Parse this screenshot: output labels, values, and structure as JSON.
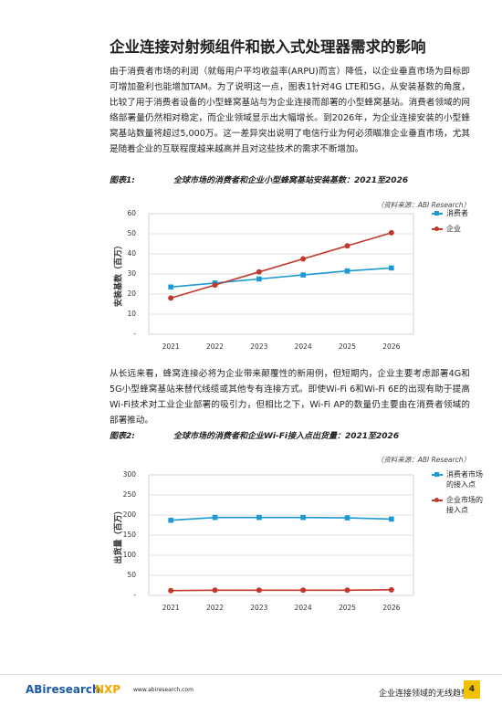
{
  "title": "企业连接对射频组件和嵌入式处理器需求的影响",
  "paragraphs": [
    "由于消费者市场的利润（就每用户平均收益率(ARPU)而言）降低，以企业垂直市场为目标即可增加盈利也能增加TAM。为了说明这一点，图表1针对4G LTE和5G，从安装基数的角度，比较了用于消费者设备的小型蜂窝基站与为企业连接而部署的小型蜂窝基站。消费者领域的网络部署量仍然相对稳定，而企业领域显示出大幅增长。到2026年，为企业连接安装的小型蜂窝基站数量将超过5,000万。这一差异突出说明了电信行业为何必须瞄准企业垂直市场，尤其是随着企业的互联程度越来越高并且对这些技术的需求不断增加。",
    "从长远来看，蜂窝连接必将为企业带来颠覆性的新用例，但短期内，企业主要考虑部署4G和5G小型蜂窝基站来替代线缆或其他专有连接方式。即使Wi-Fi 6和Wi-Fi 6E的出现有助于提高Wi-Fi技术对工业企业部署的吸引力，但相比之下，Wi-Fi AP的数量仍主要由在消费者领域的部署推动。"
  ],
  "figures": [
    {
      "label": "图表1:",
      "caption": "全球市场的消费者和企业小型蜂窝基站安装基数：2021至2026",
      "source": "（资料来源：ABI Research）"
    },
    {
      "label": "图表2:",
      "caption": "全球市场的消费者和企业Wi-Fi接入点出货量：2021至2026",
      "source": "（资料来源：ABI Research）"
    }
  ],
  "chart_data": [
    {
      "type": "line",
      "ylabel": "安装基数（百万）",
      "categories": [
        "2021",
        "2022",
        "2023",
        "2024",
        "2025",
        "2026"
      ],
      "series": [
        {
          "name": "消费者",
          "color": "#1b9ad6",
          "marker": "square",
          "values": [
            23.5,
            25.5,
            27.5,
            29.5,
            31.5,
            33
          ]
        },
        {
          "name": "企业",
          "color": "#c0392b",
          "marker": "circle",
          "values": [
            18,
            24.5,
            31,
            37.5,
            44,
            50.5
          ]
        }
      ],
      "ylim": [
        0,
        60
      ],
      "yticks": [
        {
          "value": 0,
          "label": "-"
        },
        10,
        20,
        30,
        40,
        50,
        60
      ],
      "grid": true,
      "legend": "right"
    },
    {
      "type": "line",
      "ylabel": "出货量（百万）",
      "categories": [
        "2021",
        "2022",
        "2023",
        "2024",
        "2025",
        "2026"
      ],
      "series": [
        {
          "name": "消费者市场的接入点",
          "color": "#1b9ad6",
          "marker": "square",
          "values": [
            187,
            194,
            194,
            194,
            193,
            190
          ]
        },
        {
          "name": "企业市场的接入点",
          "color": "#c0392b",
          "marker": "circle",
          "values": [
            12,
            13,
            13,
            13,
            13,
            14
          ]
        }
      ],
      "ylim": [
        0,
        300
      ],
      "yticks": [
        {
          "value": 0,
          "label": "-"
        },
        50,
        100,
        150,
        200,
        250,
        300
      ],
      "grid": true,
      "legend": "right"
    }
  ],
  "footer": {
    "logo_abi": "ABiresearch.",
    "logo_nxp": "NXP",
    "url": "www.abiresearch.com",
    "doc_title": "企业连接领域的无线趋势",
    "page": "4"
  }
}
